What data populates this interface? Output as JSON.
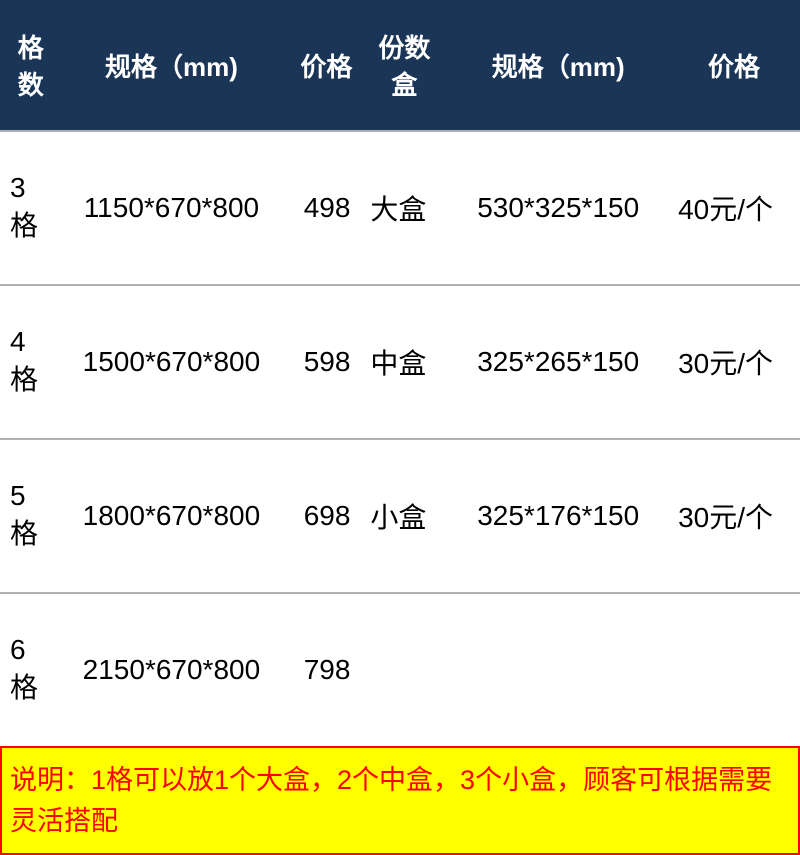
{
  "table": {
    "headers": {
      "col1": "格数",
      "col2": "规格（mm)",
      "col3": "价格",
      "col4": "份数盒",
      "col5": "规格（mm)",
      "col6": "价格"
    },
    "rows": [
      {
        "gesu": "3格",
        "spec1": "1150*670*800",
        "price1": "498",
        "boxtype": "大盒",
        "spec2": "530*325*150",
        "price2": "40元/个"
      },
      {
        "gesu": "4格",
        "spec1": "1500*670*800",
        "price1": "598",
        "boxtype": "中盒",
        "spec2": "325*265*150",
        "price2": "30元/个"
      },
      {
        "gesu": "5格",
        "spec1": "1800*670*800",
        "price1": "698",
        "boxtype": "小盒",
        "spec2": "325*176*150",
        "price2": "30元/个"
      },
      {
        "gesu": "6格",
        "spec1": "2150*670*800",
        "price1": "798",
        "boxtype": "",
        "spec2": "",
        "price2": ""
      }
    ]
  },
  "note": "说明：1格可以放1个大盒，2个中盒，3个小盒，顾客可根据需要灵活搭配",
  "colors": {
    "header_bg": "#1a3556",
    "header_text": "#ffffff",
    "body_text": "#000000",
    "border": "#b0b0b0",
    "note_bg": "#ffff00",
    "note_border": "#ff0000",
    "note_text": "#ff0000"
  }
}
